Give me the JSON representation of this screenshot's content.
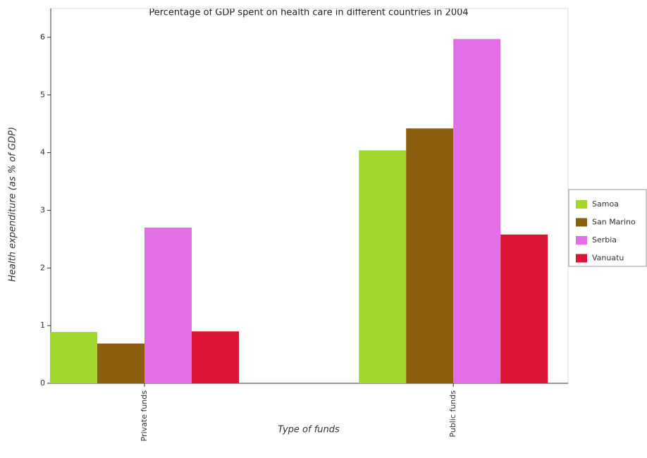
{
  "chart_data": {
    "type": "bar",
    "title": "Percentage of GDP spent on health care in different countries in 2004",
    "xlabel": "Type of funds",
    "ylabel": "Health expenditure (as % of GDP)",
    "categories": [
      "Private funds",
      "Public funds"
    ],
    "series": [
      {
        "name": "Samoa",
        "color": "#a2d82e",
        "values": [
          0.89,
          4.04
        ]
      },
      {
        "name": "San Marino",
        "color": "#8b5f0e",
        "values": [
          0.69,
          4.42
        ]
      },
      {
        "name": "Serbia",
        "color": "#e26ee8",
        "values": [
          2.7,
          5.97
        ]
      },
      {
        "name": "Vanuatu",
        "color": "#dc1436",
        "values": [
          0.9,
          2.58
        ]
      }
    ],
    "ylim": [
      0,
      6.5
    ],
    "yticks": [
      0,
      1,
      2,
      3,
      4,
      5,
      6
    ],
    "legend": "right"
  }
}
